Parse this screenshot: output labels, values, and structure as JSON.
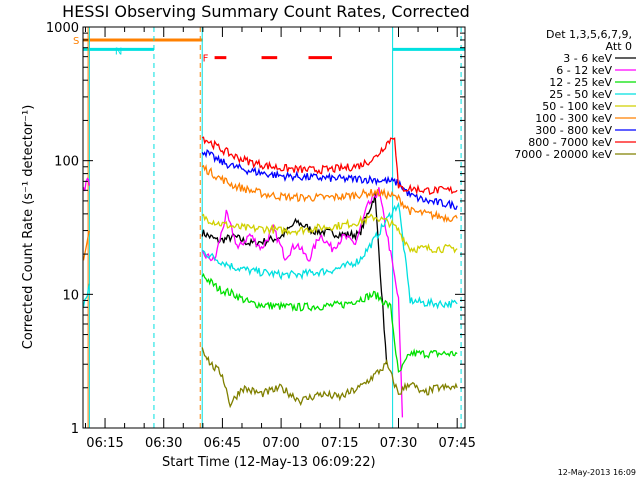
{
  "chart_data": {
    "type": "line",
    "title": "HESSI Observing Summary Count Rates, Corrected",
    "xlabel": "Start Time (12-May-13 06:09:22)",
    "ylabel": "Corrected Count Rate (s⁻¹ detector⁻¹)",
    "y_scale": "log",
    "ylim": [
      1,
      1000
    ],
    "xlim": [
      "06:09:22",
      "07:47:00"
    ],
    "x_tick_labels": [
      "06:15",
      "06:30",
      "06:45",
      "07:00",
      "07:15",
      "07:30",
      "07:45"
    ],
    "y_tick_labels": [
      "1",
      "10",
      "100",
      "1000"
    ],
    "legend_header": [
      "Det 1,3,5,6,7,9,",
      "Att 0"
    ],
    "legend_placement": "right",
    "series": [
      {
        "name": "3 - 6 keV",
        "color": "#000000",
        "segments": [
          {
            "x": [
              "06:39:50",
              "06:44",
              "06:48",
              "06:52",
              "06:56",
              "07:00",
              "07:04",
              "07:08",
              "07:12",
              "07:16",
              "07:20",
              "07:24",
              "07:27"
            ],
            "y": [
              29,
              25,
              27,
              24,
              25,
              27,
              35,
              30,
              29,
              28,
              28,
              55,
              3
            ]
          }
        ]
      },
      {
        "name": "6 - 12 keV",
        "color": "#ff00ff",
        "segments": [
          {
            "x": [
              "06:09:30",
              "06:10:30",
              "06:11"
            ],
            "y": [
              60,
              70,
              65
            ]
          },
          {
            "x": [
              "06:39:50",
              "06:43",
              "06:46",
              "06:49",
              "06:52",
              "06:55",
              "06:58",
              "07:01",
              "07:04",
              "07:07",
              "07:10",
              "07:13",
              "07:16",
              "07:19",
              "07:22",
              "07:25",
              "07:28",
              "07:30",
              "07:31"
            ],
            "y": [
              20,
              18,
              40,
              22,
              28,
              22,
              31,
              19,
              24,
              18,
              28,
              22,
              27,
              24,
              45,
              60,
              20,
              9,
              1.2
            ]
          }
        ]
      },
      {
        "name": "12 - 25 keV",
        "color": "#00e000",
        "segments": [
          {
            "x": [
              "06:39:50",
              "06:44",
              "06:48",
              "06:52",
              "06:56",
              "07:00",
              "07:04",
              "07:08",
              "07:12",
              "07:16",
              "07:20",
              "07:24",
              "07:28",
              "07:30",
              "07:33",
              "07:37",
              "07:41",
              "07:45"
            ],
            "y": [
              14,
              11,
              10,
              8.6,
              8.3,
              8.1,
              8.0,
              8.1,
              8.2,
              8.4,
              9.2,
              10,
              8,
              2.5,
              3.6,
              3.6,
              3.6,
              3.6
            ]
          }
        ]
      },
      {
        "name": "25 - 50 keV",
        "color": "#00e0e0",
        "segments": [
          {
            "x": [
              "06:09:30",
              "06:10:30",
              "06:11"
            ],
            "y": [
              8,
              10,
              12
            ]
          },
          {
            "x": [
              "06:39:50",
              "06:44",
              "06:48",
              "06:52",
              "06:56",
              "07:00",
              "07:04",
              "07:08",
              "07:12",
              "07:16",
              "07:20",
              "07:24",
              "07:28",
              "07:30",
              "07:33",
              "07:37",
              "07:41",
              "07:45"
            ],
            "y": [
              21,
              18,
              16,
              15,
              14.5,
              14,
              14,
              14.5,
              15,
              16,
              18,
              26,
              40,
              48,
              9,
              8.6,
              8.5,
              8.5
            ]
          }
        ]
      },
      {
        "name": "50 - 100 keV",
        "color": "#d0d000",
        "segments": [
          {
            "x": [
              "06:39:50",
              "06:44",
              "06:48",
              "06:52",
              "06:56",
              "07:00",
              "07:04",
              "07:08",
              "07:12",
              "07:16",
              "07:20",
              "07:24",
              "07:28",
              "07:30",
              "07:33",
              "07:37",
              "07:41",
              "07:45"
            ],
            "y": [
              38,
              34,
              32,
              31,
              31,
              30,
              30,
              31,
              32,
              33,
              35,
              38,
              34,
              30,
              22,
              22,
              22,
              22
            ]
          }
        ]
      },
      {
        "name": "100 - 300 keV",
        "color": "#ff8000",
        "segments": [
          {
            "x": [
              "06:09:30",
              "06:10:30",
              "06:11"
            ],
            "y": [
              18,
              25,
              30
            ]
          },
          {
            "x": [
              "06:39:50",
              "06:44",
              "06:48",
              "06:52",
              "06:56",
              "07:00",
              "07:04",
              "07:08",
              "07:12",
              "07:16",
              "07:20",
              "07:24",
              "07:28",
              "07:30",
              "07:33",
              "07:37",
              "07:41",
              "07:45"
            ],
            "y": [
              90,
              75,
              65,
              60,
              56,
              54,
              53,
              53,
              53,
              54,
              56,
              58,
              55,
              52,
              42,
              40,
              38,
              37
            ]
          }
        ]
      },
      {
        "name": "300 - 800 keV",
        "color": "#0000ff",
        "segments": [
          {
            "x": [
              "06:39:50",
              "06:44",
              "06:48",
              "06:52",
              "06:56",
              "07:00",
              "07:04",
              "07:08",
              "07:12",
              "07:16",
              "07:20",
              "07:24",
              "07:28",
              "07:30",
              "07:33",
              "07:37",
              "07:41",
              "07:45"
            ],
            "y": [
              120,
              100,
              90,
              84,
              80,
              77,
              76,
              75,
              74,
              73,
              73,
              72,
              70,
              68,
              55,
              50,
              48,
              46
            ]
          }
        ]
      },
      {
        "name": "800 - 7000 keV",
        "color": "#ff0000",
        "segments": [
          {
            "x": [
              "06:39:50",
              "06:44",
              "06:48",
              "06:52",
              "06:56",
              "07:00",
              "07:04",
              "07:08",
              "07:12",
              "07:16",
              "07:20",
              "07:24",
              "07:27",
              "07:29",
              "07:30",
              "07:33",
              "07:37",
              "07:41",
              "07:45"
            ],
            "y": [
              150,
              125,
              108,
              98,
              92,
              88,
              86,
              85,
              86,
              88,
              92,
              105,
              135,
              155,
              62,
              62,
              60,
              60,
              60
            ]
          }
        ]
      },
      {
        "name": "7000 - 20000 keV",
        "color": "#808000",
        "segments": [
          {
            "x": [
              "06:39:50",
              "06:42",
              "06:45",
              "06:47",
              "06:50",
              "06:55",
              "07:00",
              "07:05",
              "07:10",
              "07:15",
              "07:20",
              "07:24",
              "07:27",
              "07:30",
              "07:33",
              "07:36",
              "07:40",
              "07:45"
            ],
            "y": [
              4,
              3,
              2.5,
              1.5,
              2,
              1.8,
              2,
              1.6,
              1.8,
              1.7,
              2,
              2.5,
              3,
              1.8,
              2.2,
              1.8,
              2,
              2
            ]
          }
        ]
      }
    ],
    "state_bars": [
      {
        "label": "S",
        "color": "#ff8000",
        "start": "06:09:22",
        "end": "06:40:00",
        "value": 800
      },
      {
        "label": "N",
        "color": "#00e0e0",
        "start": "06:09:22",
        "end": "06:27:30",
        "value": 680
      },
      {
        "label": "N",
        "color": "#00e0e0",
        "start": "07:28:30",
        "end": "07:47:00",
        "value": 680
      },
      {
        "label": "F",
        "color": "#ff0000",
        "start": "06:43:00",
        "end": "06:46:00",
        "value": 590
      },
      {
        "label": "F",
        "color": "#ff0000",
        "start": "06:55:00",
        "end": "06:59:00",
        "value": 590
      },
      {
        "label": "F",
        "color": "#ff0000",
        "start": "07:07:00",
        "end": "07:13:00",
        "value": 590
      }
    ],
    "vertical_lines": [
      {
        "time": "06:10:40",
        "color": "#ff8000",
        "style": "solid"
      },
      {
        "time": "06:11:00",
        "color": "#00e0e0",
        "style": "solid"
      },
      {
        "time": "06:27:30",
        "color": "#00e0e0",
        "style": "dashed"
      },
      {
        "time": "06:39:20",
        "color": "#ff8000",
        "style": "dashed"
      },
      {
        "time": "06:39:50",
        "color": "#00e0e0",
        "style": "solid"
      },
      {
        "time": "07:28:30",
        "color": "#00e0e0",
        "style": "solid"
      },
      {
        "time": "07:46:00",
        "color": "#00e0e0",
        "style": "dashed"
      }
    ],
    "footer_timestamp": "12-May-2013 16:09"
  }
}
